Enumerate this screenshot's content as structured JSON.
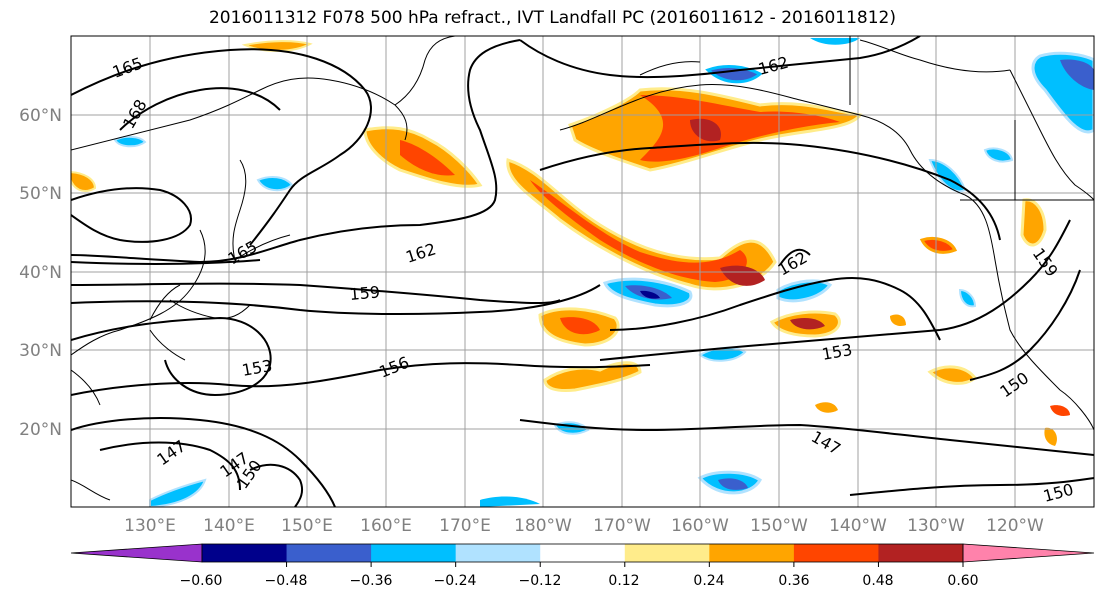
{
  "title": "2016011312 F078 500 hPa refract., IVT Landfall PC (2016011612 - 2016011812)",
  "map": {
    "lat_labels": [
      "60°N",
      "50°N",
      "40°N",
      "30°N",
      "20°N"
    ],
    "lon_labels": [
      "130°E",
      "140°E",
      "150°E",
      "160°E",
      "170°E",
      "180°W",
      "170°W",
      "160°W",
      "150°W",
      "140°W",
      "130°W",
      "120°W"
    ],
    "contour_labels": [
      "165",
      "168",
      "162",
      "165",
      "162",
      "159",
      "153",
      "156",
      "153",
      "150",
      "147",
      "147",
      "150",
      "162",
      "159",
      "147",
      "150"
    ]
  },
  "colorbar": {
    "colors": [
      "#9932cc",
      "#00008b",
      "#3a5fcd",
      "#00bfff",
      "#b0e2ff",
      "#ffffff",
      "#ffec8b",
      "#ffa500",
      "#ff4500",
      "#b22222",
      "#ff82ab"
    ],
    "ticks": [
      "−0.60",
      "−0.48",
      "−0.36",
      "−0.24",
      "−0.12",
      "0.12",
      "0.24",
      "0.36",
      "0.48",
      "0.60"
    ]
  }
}
